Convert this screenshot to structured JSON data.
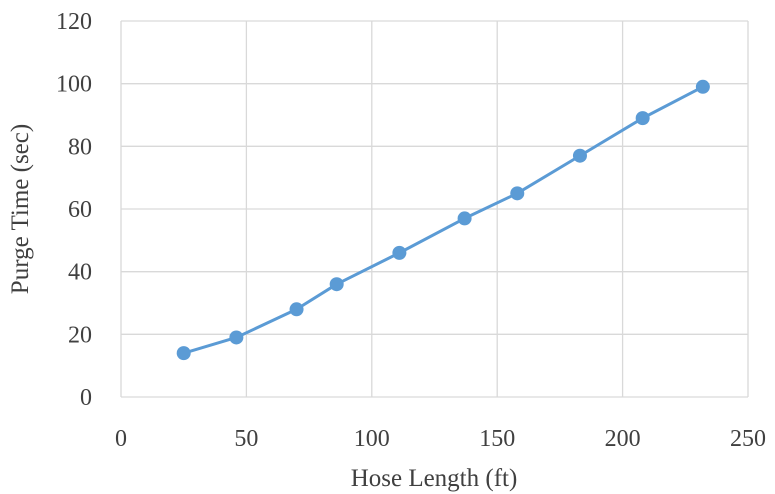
{
  "chart_data": {
    "type": "line",
    "title": "",
    "xlabel": "Hose Length (ft)",
    "ylabel": "Purge Time (sec)",
    "xlim": [
      0,
      250
    ],
    "ylim": [
      0,
      120
    ],
    "xticks": [
      "0",
      "50",
      "100",
      "150",
      "200",
      "250"
    ],
    "yticks": [
      "0",
      "20",
      "40",
      "60",
      "80",
      "100",
      "120"
    ],
    "grid": true,
    "legend": "none",
    "color": "#5b9bd5",
    "series": [
      {
        "x": [
          25,
          46,
          70,
          86,
          111,
          137,
          158,
          183,
          208,
          232
        ],
        "y": [
          14,
          19,
          28,
          36,
          46,
          57,
          65,
          77,
          89,
          99
        ]
      }
    ]
  }
}
